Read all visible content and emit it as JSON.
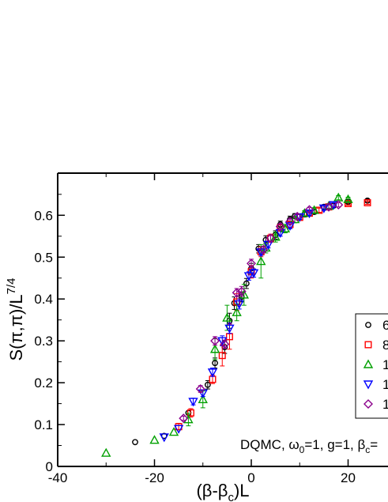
{
  "chart_data": {
    "type": "scatter",
    "title": "",
    "xlabel_main": "(β-β",
    "xlabel_sub": "c",
    "xlabel_tail": ")L",
    "ylabel_main": "S(π,π)/L",
    "ylabel_sup": "7/4",
    "xlim": [
      -40,
      28
    ],
    "ylim": [
      0,
      0.7
    ],
    "x_ticks": [
      -40,
      -20,
      0,
      20
    ],
    "y_ticks": [
      0,
      0.1,
      0.2,
      0.3,
      0.4,
      0.5,
      0.6
    ],
    "x_tick_labels": [
      "-40",
      "-20",
      "0",
      "20"
    ],
    "y_tick_labels": [
      "0",
      "0.1",
      "0.2",
      "0.3",
      "0.4",
      "0.5",
      "0.6"
    ],
    "annotation_main": "DQMC, ω",
    "annotation_sub1": "0",
    "annotation_mid": "=1, g=1, β",
    "annotation_sub2": "c",
    "annotation_tail": "=",
    "legend_position": "right (cut off)",
    "legend_labels": [
      "6",
      "8",
      "1",
      "1",
      "1"
    ],
    "series": [
      {
        "marker": "circle",
        "color": "#000000",
        "points": [
          [
            -24,
            0.058
          ],
          [
            -18,
            0.073
          ],
          [
            -13,
            0.128
          ],
          [
            -9,
            0.195
          ],
          [
            -7.5,
            0.247
          ],
          [
            -5.5,
            0.285
          ],
          [
            -4.5,
            0.348
          ],
          [
            -3.5,
            0.39
          ],
          [
            -2,
            0.405
          ],
          [
            -1,
            0.437
          ],
          [
            0,
            0.473
          ],
          [
            1.5,
            0.52
          ],
          [
            3,
            0.541
          ],
          [
            5,
            0.553
          ],
          [
            6,
            0.578
          ],
          [
            8,
            0.59
          ],
          [
            9,
            0.598
          ],
          [
            11,
            0.602
          ],
          [
            13,
            0.608
          ],
          [
            15,
            0.62
          ],
          [
            17,
            0.623
          ],
          [
            20,
            0.632
          ],
          [
            24,
            0.635
          ]
        ],
        "err": [
          0,
          0,
          0,
          0.01,
          0.012,
          0.015,
          0.018,
          0.015,
          0.012,
          0.012,
          0.012,
          0.01,
          0.01,
          0.01,
          0.008,
          0.008,
          0.006,
          0.006,
          0.005,
          0.005,
          0.005,
          0.004,
          0.004
        ]
      },
      {
        "marker": "square",
        "color": "#ff0000",
        "points": [
          [
            -15,
            0.095
          ],
          [
            -12.5,
            0.128
          ],
          [
            -8,
            0.208
          ],
          [
            -6,
            0.265
          ],
          [
            -4.5,
            0.31
          ],
          [
            -3,
            0.393
          ],
          [
            0,
            0.465
          ],
          [
            2,
            0.513
          ],
          [
            4,
            0.545
          ],
          [
            6,
            0.57
          ],
          [
            8,
            0.578
          ],
          [
            10,
            0.595
          ],
          [
            12,
            0.605
          ],
          [
            14,
            0.612
          ],
          [
            16,
            0.62
          ],
          [
            20,
            0.628
          ],
          [
            24,
            0.63
          ]
        ],
        "err": [
          0.008,
          0.01,
          0.01,
          0.025,
          0.03,
          0.02,
          0.015,
          0.012,
          0.01,
          0.008,
          0.008,
          0.007,
          0.006,
          0.005,
          0.005,
          0.004,
          0.004
        ]
      },
      {
        "marker": "triangle-up",
        "color": "#00a000",
        "points": [
          [
            -30,
            0.032
          ],
          [
            -20,
            0.063
          ],
          [
            -16,
            0.082
          ],
          [
            -13,
            0.112
          ],
          [
            -10,
            0.16
          ],
          [
            -7.5,
            0.28
          ],
          [
            -5,
            0.355
          ],
          [
            -3,
            0.368
          ],
          [
            -1.5,
            0.41
          ],
          [
            2,
            0.49
          ],
          [
            3,
            0.522
          ],
          [
            5,
            0.548
          ],
          [
            7,
            0.568
          ],
          [
            9,
            0.59
          ],
          [
            11,
            0.605
          ],
          [
            13,
            0.612
          ],
          [
            16,
            0.622
          ],
          [
            18,
            0.642
          ],
          [
            20,
            0.638
          ]
        ],
        "err": [
          0,
          0,
          0,
          0.015,
          0.02,
          0.025,
          0.03,
          0.02,
          0.025,
          0.04,
          0.012,
          0.012,
          0.01,
          0.008,
          0.006,
          0.006,
          0.005,
          0.005,
          0.005
        ]
      },
      {
        "marker": "triangle-down",
        "color": "#0000ff",
        "points": [
          [
            -18,
            0.07
          ],
          [
            -15,
            0.09
          ],
          [
            -12,
            0.155
          ],
          [
            -10,
            0.175
          ],
          [
            -8,
            0.225
          ],
          [
            -6,
            0.3
          ],
          [
            -4.5,
            0.33
          ],
          [
            -2.5,
            0.388
          ],
          [
            -0.5,
            0.455
          ],
          [
            0.5,
            0.462
          ],
          [
            2,
            0.512
          ],
          [
            3.5,
            0.53
          ],
          [
            6,
            0.558
          ],
          [
            8,
            0.575
          ],
          [
            10,
            0.596
          ],
          [
            12,
            0.605
          ],
          [
            15,
            0.617
          ],
          [
            17,
            0.625
          ]
        ],
        "err": [
          0,
          0,
          0.008,
          0.008,
          0.01,
          0.012,
          0.012,
          0.012,
          0.01,
          0.01,
          0.008,
          0.008,
          0.008,
          0.007,
          0.006,
          0.005,
          0.005,
          0.005
        ]
      },
      {
        "marker": "diamond",
        "color": "#8b008b",
        "points": [
          [
            -14,
            0.115
          ],
          [
            -10.5,
            0.185
          ],
          [
            -7.5,
            0.3
          ],
          [
            -5.5,
            0.292
          ],
          [
            -3,
            0.415
          ],
          [
            -2,
            0.418
          ],
          [
            0,
            0.485
          ],
          [
            2.5,
            0.518
          ],
          [
            4,
            0.545
          ],
          [
            6,
            0.573
          ],
          [
            8,
            0.585
          ],
          [
            9.5,
            0.597
          ],
          [
            12,
            0.613
          ],
          [
            16,
            0.62
          ],
          [
            18,
            0.625
          ]
        ],
        "err": [
          0.005,
          0.008,
          0.01,
          0.01,
          0.01,
          0.012,
          0.01,
          0.008,
          0.008,
          0.007,
          0.006,
          0.006,
          0.005,
          0.005,
          0.005
        ]
      }
    ]
  }
}
